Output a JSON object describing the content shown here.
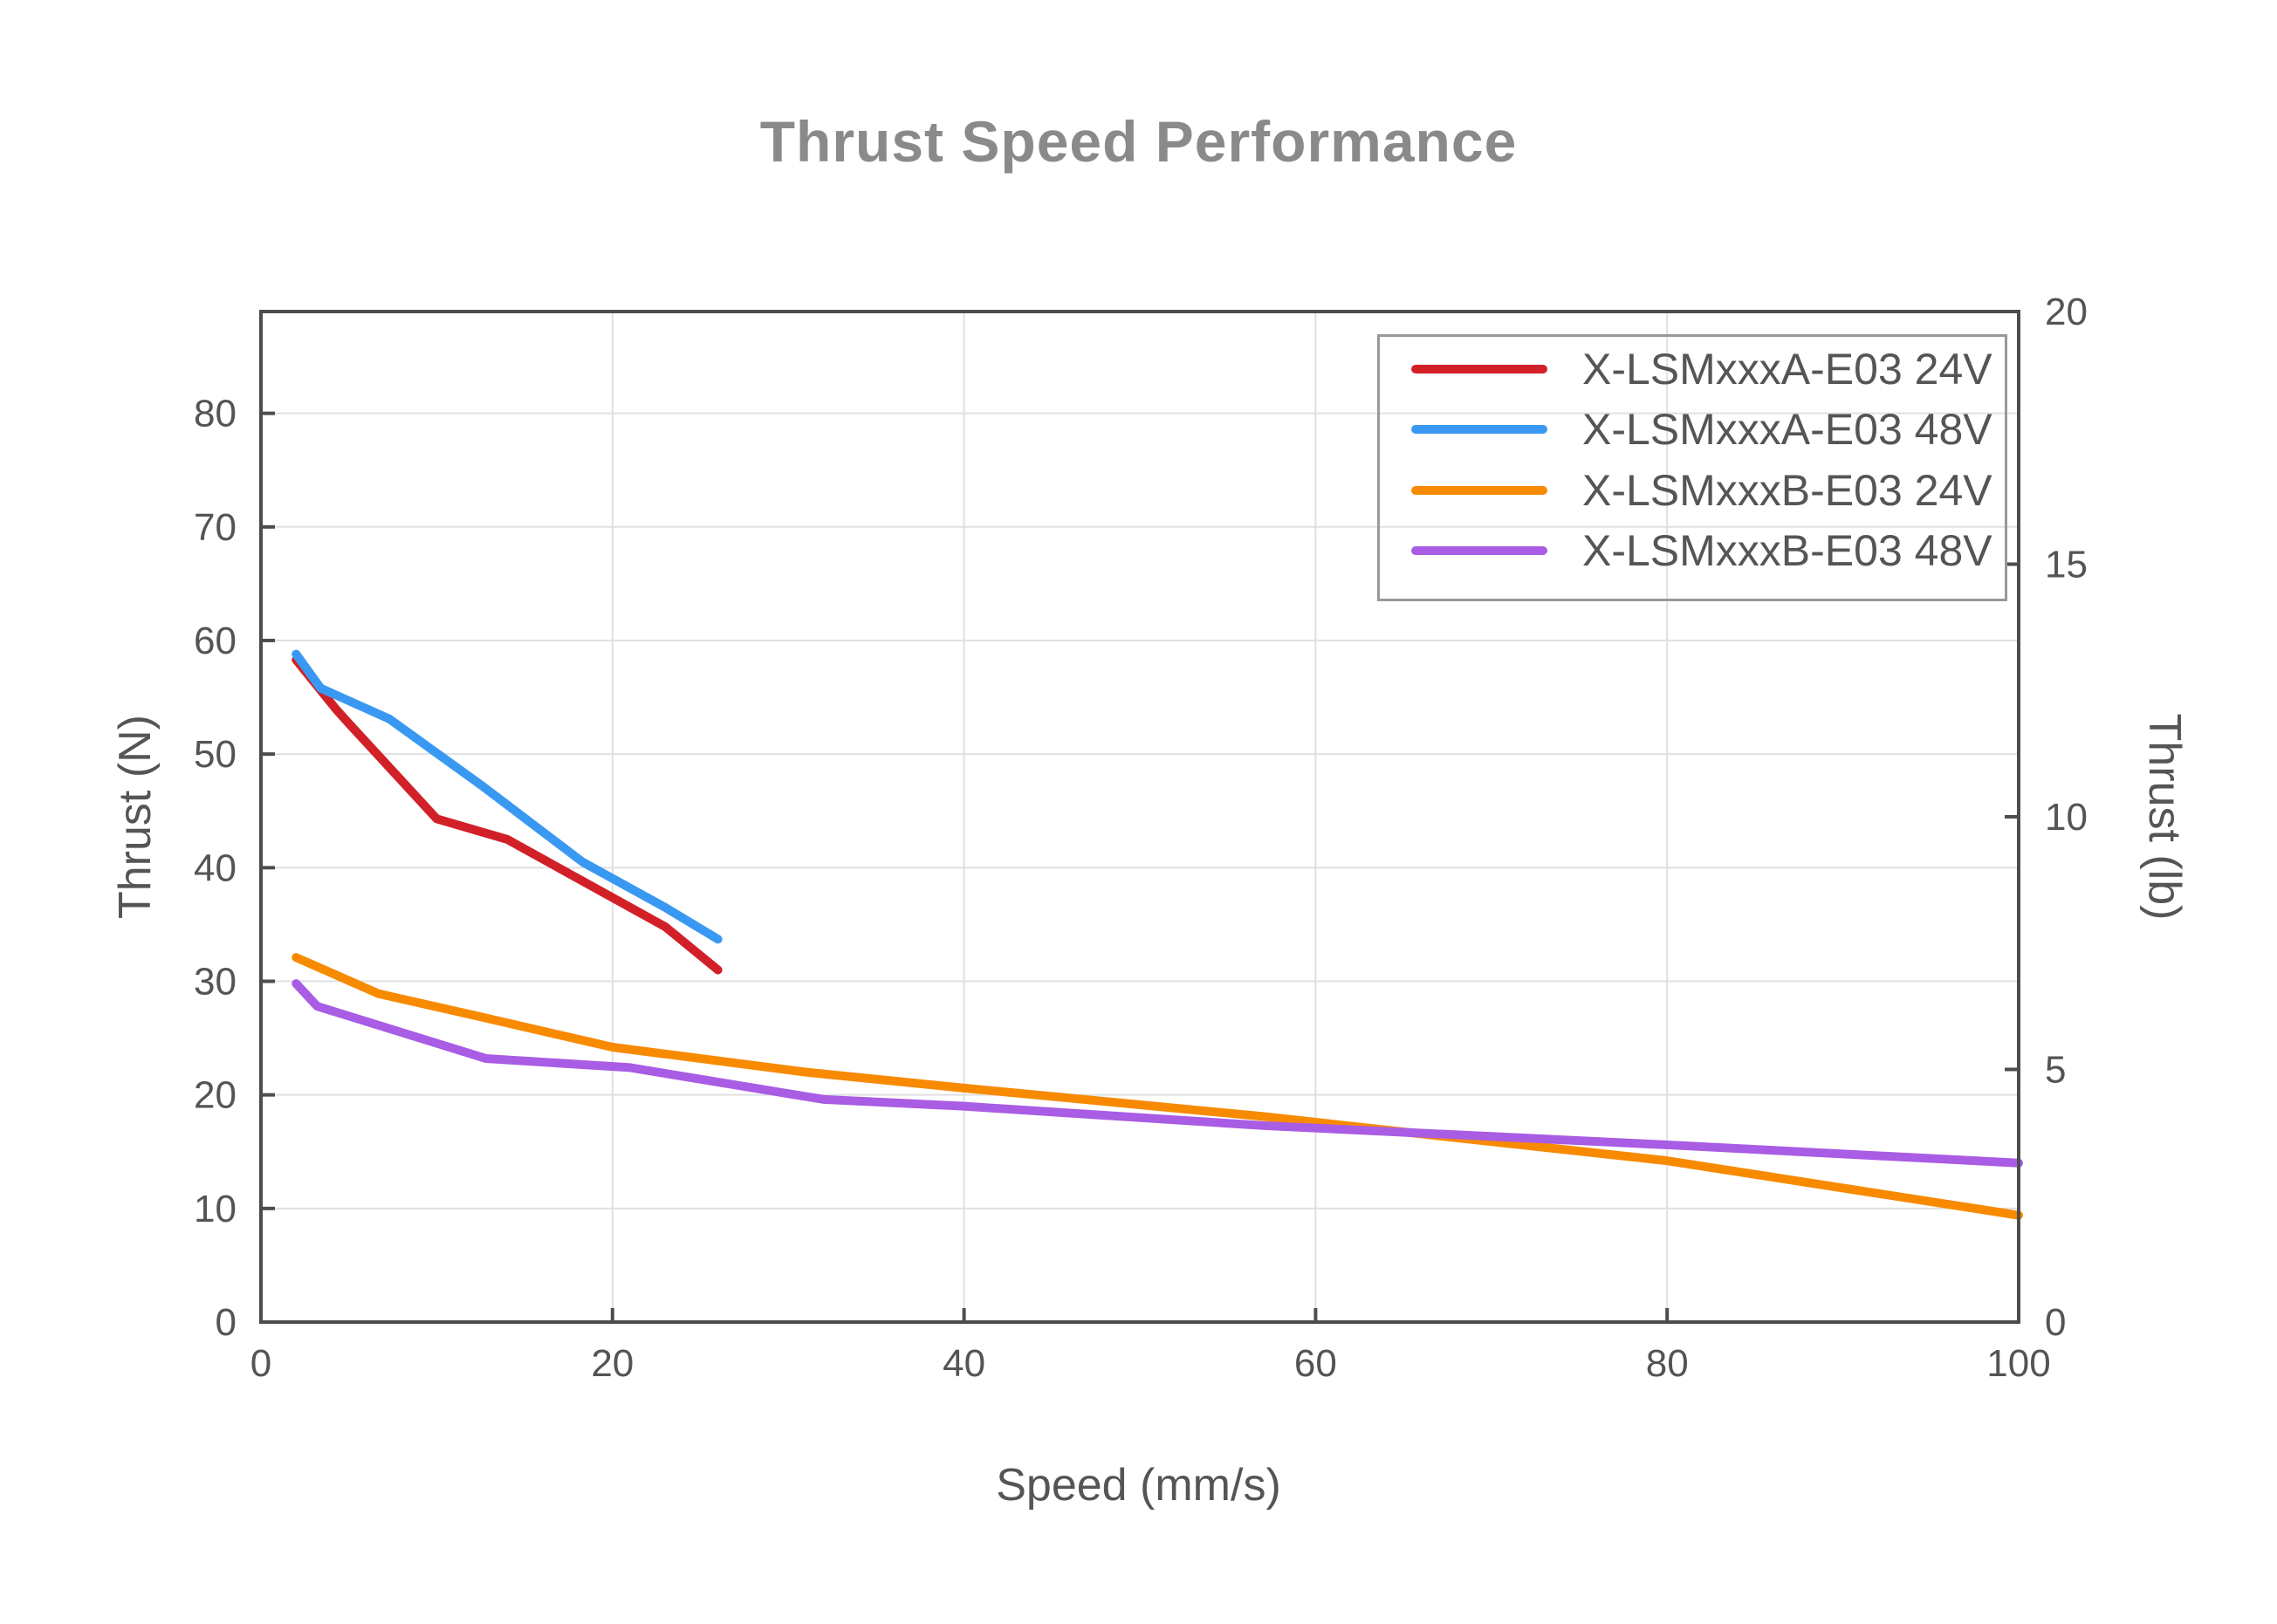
{
  "title": "Thrust Speed Performance",
  "axis_titles": {
    "x": "Speed (mm/s)",
    "y_left": "Thrust (N)",
    "y_right": "Thrust (lb)"
  },
  "style": {
    "title_color": "#8a8a8a",
    "axis_label_color": "#555555",
    "tick_label_color": "#545454",
    "frame_color": "#4d4d4d",
    "gridline_color": "#e0e0e0",
    "legend_border_color": "#999999",
    "background": "#ffffff"
  },
  "chart_data": {
    "type": "line",
    "title": "Thrust Speed Performance",
    "xlabel": "Speed (mm/s)",
    "ylabel_left": "Thrust (N)",
    "ylabel_right": "Thrust (lb)",
    "xlim": [
      0,
      100
    ],
    "ylim_left": [
      0,
      88.96
    ],
    "ylim_right": [
      0,
      20
    ],
    "x_ticks": [
      0,
      20,
      40,
      60,
      80,
      100
    ],
    "y_left_ticks": [
      0,
      10,
      20,
      30,
      40,
      50,
      60,
      70,
      80
    ],
    "y_right_ticks": [
      0,
      5,
      10,
      15,
      20
    ],
    "grid": true,
    "gridlines": "left-axis and x-axis ticks, visible through transparent legend",
    "legend_position": "top-right",
    "series": [
      {
        "name": "X-LSMxxxA-E03 24V",
        "color": "#d22028",
        "points": [
          [
            2,
            58.3
          ],
          [
            4.3,
            53.9
          ],
          [
            5,
            52.7
          ],
          [
            10,
            44.3
          ],
          [
            14,
            42.5
          ],
          [
            23,
            34.8
          ],
          [
            26,
            31.0
          ]
        ]
      },
      {
        "name": "X-LSMxxxA-E03 48V",
        "color": "#3999f2",
        "points": [
          [
            2,
            58.8
          ],
          [
            3.4,
            55.8
          ],
          [
            7.3,
            53.1
          ],
          [
            12.5,
            47.3
          ],
          [
            18.3,
            40.5
          ],
          [
            23,
            36.5
          ],
          [
            26,
            33.7
          ]
        ]
      },
      {
        "name": "X-LSMxxxB-E03 24V",
        "color": "#f88a00",
        "points": [
          [
            2,
            32.1
          ],
          [
            6.7,
            28.9
          ],
          [
            12.7,
            26.8
          ],
          [
            20,
            24.2
          ],
          [
            31,
            22.0
          ],
          [
            40,
            20.6
          ],
          [
            57,
            18.1
          ],
          [
            67,
            16.4
          ],
          [
            80,
            14.2
          ],
          [
            100,
            9.4
          ]
        ]
      },
      {
        "name": "X-LSMxxxB-E03 48V",
        "color": "#a95ce4",
        "points": [
          [
            2,
            29.8
          ],
          [
            3.2,
            27.8
          ],
          [
            12.8,
            23.2
          ],
          [
            21,
            22.4
          ],
          [
            32,
            19.6
          ],
          [
            40,
            19.0
          ],
          [
            57,
            17.3
          ],
          [
            80,
            15.6
          ],
          [
            100,
            14.0
          ]
        ]
      }
    ]
  }
}
